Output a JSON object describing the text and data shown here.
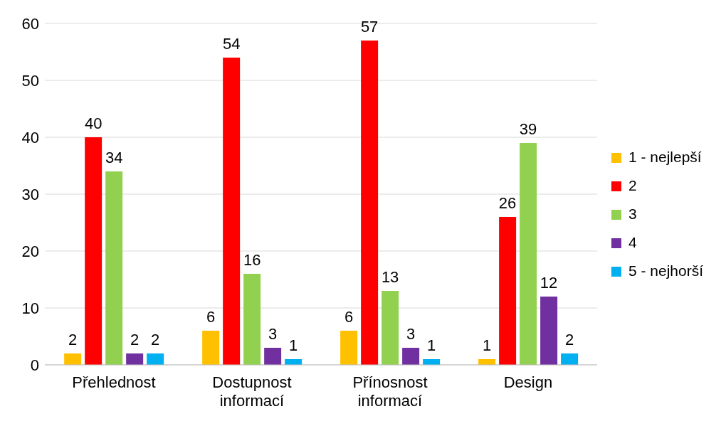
{
  "chart_data": {
    "type": "bar",
    "categories": [
      "Přehlednost",
      "Dostupnost informací",
      "Přínosnost informací",
      "Design"
    ],
    "series": [
      {
        "name": "1 - nejlepší",
        "color": "#ffc000",
        "values": [
          2,
          6,
          6,
          1
        ]
      },
      {
        "name": "2",
        "color": "#ff0000",
        "values": [
          40,
          54,
          57,
          26
        ]
      },
      {
        "name": "3",
        "color": "#92d050",
        "values": [
          34,
          16,
          13,
          39
        ]
      },
      {
        "name": "4",
        "color": "#7030a0",
        "values": [
          2,
          3,
          3,
          12
        ]
      },
      {
        "name": "5 - nejhorší",
        "color": "#00b0f0",
        "values": [
          2,
          1,
          1,
          2
        ]
      }
    ],
    "ylim": [
      0,
      60
    ],
    "yticks": [
      0,
      10,
      20,
      30,
      40,
      50,
      60
    ],
    "grid": "y",
    "legend": "right",
    "data_labels": true
  }
}
